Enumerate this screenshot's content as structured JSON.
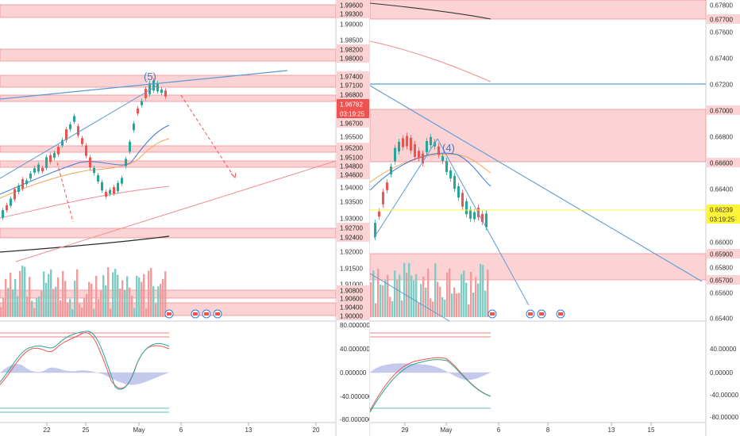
{
  "left": {
    "price_axis": [
      "1.99600",
      "1.99300",
      "1.99000",
      "1.98500",
      "1.98200",
      "1.98000",
      "1.97400",
      "1.97100",
      "1.96800",
      "1.96782",
      "03:19:25",
      "1.96700",
      "1.95500",
      "1.95200",
      "1.95100",
      "1.94800",
      "1.94600",
      "1.94000",
      "1.93500",
      "1.93000",
      "1.92700",
      "1.92400",
      "1.92000",
      "1.91500",
      "1.91000",
      "1.90800",
      "1.90600",
      "1.90400",
      "1.90000"
    ],
    "osc_axis": [
      "80.000000",
      "40.000000",
      "0.000000",
      "-40.000000",
      "-80.000000"
    ],
    "time_axis": [
      "22",
      "25",
      "May",
      "6",
      "13",
      "20"
    ],
    "wave_label": "(5)"
  },
  "right": {
    "price_axis": [
      "0.67800",
      "0.67700",
      "0.67600",
      "0.67400",
      "0.67200",
      "0.67000",
      "0.66800",
      "0.66600",
      "0.66400",
      "0.66239",
      "03:19:25",
      "0.66000",
      "0.65900",
      "0.65800",
      "0.65700",
      "0.65600",
      "0.65400"
    ],
    "osc_axis": [
      "40.00000",
      "0.00000",
      "-40.00000",
      "-80.00000"
    ],
    "time_axis": [
      "29",
      "May",
      "6",
      "8",
      "13",
      "15"
    ],
    "wave_label": "(4)"
  },
  "colors": {
    "zone": "#fbd3d5",
    "zone_border": "#f08f93",
    "up": "#26a69a",
    "down": "#ef5350",
    "trend": "#5b9bd5",
    "last_price_left": "#ef5350",
    "last_price_right": "#fff43a"
  }
}
